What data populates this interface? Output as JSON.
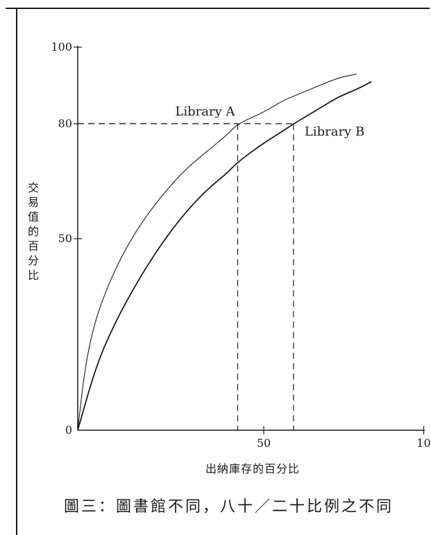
{
  "chart_data": {
    "type": "line",
    "title": "",
    "xlabel": "出納庫存的百分比",
    "ylabel": "交易值的百分比",
    "xlim": [
      0,
      100
    ],
    "ylim": [
      0,
      100
    ],
    "x_ticks": [
      "50",
      "10"
    ],
    "y_ticks": [
      "100",
      "80",
      "50",
      "0"
    ],
    "series": [
      {
        "name": "Library A",
        "x": [
          0,
          2,
          5,
          10,
          15,
          20,
          25,
          30,
          35,
          40,
          43,
          50,
          55,
          60,
          65,
          70,
          75
        ],
        "y": [
          0,
          17,
          30,
          42,
          51,
          58,
          64,
          69,
          73,
          77,
          80,
          83,
          86,
          88,
          90,
          92,
          93
        ]
      },
      {
        "name": "Library B",
        "x": [
          0,
          5,
          10,
          15,
          20,
          25,
          30,
          35,
          40,
          43,
          50,
          55,
          58,
          65,
          70,
          75,
          79
        ],
        "y": [
          0,
          17,
          28,
          37,
          45,
          52,
          58,
          63,
          67,
          70,
          75,
          78,
          80,
          84,
          87,
          89,
          91
        ]
      }
    ],
    "reference_lines": [
      {
        "series": "Library A",
        "x": 43,
        "y": 80
      },
      {
        "series": "Library B",
        "x": 58,
        "y": 80
      }
    ]
  },
  "caption": "圖三：圖書館不同，八十／二十比例之不同"
}
